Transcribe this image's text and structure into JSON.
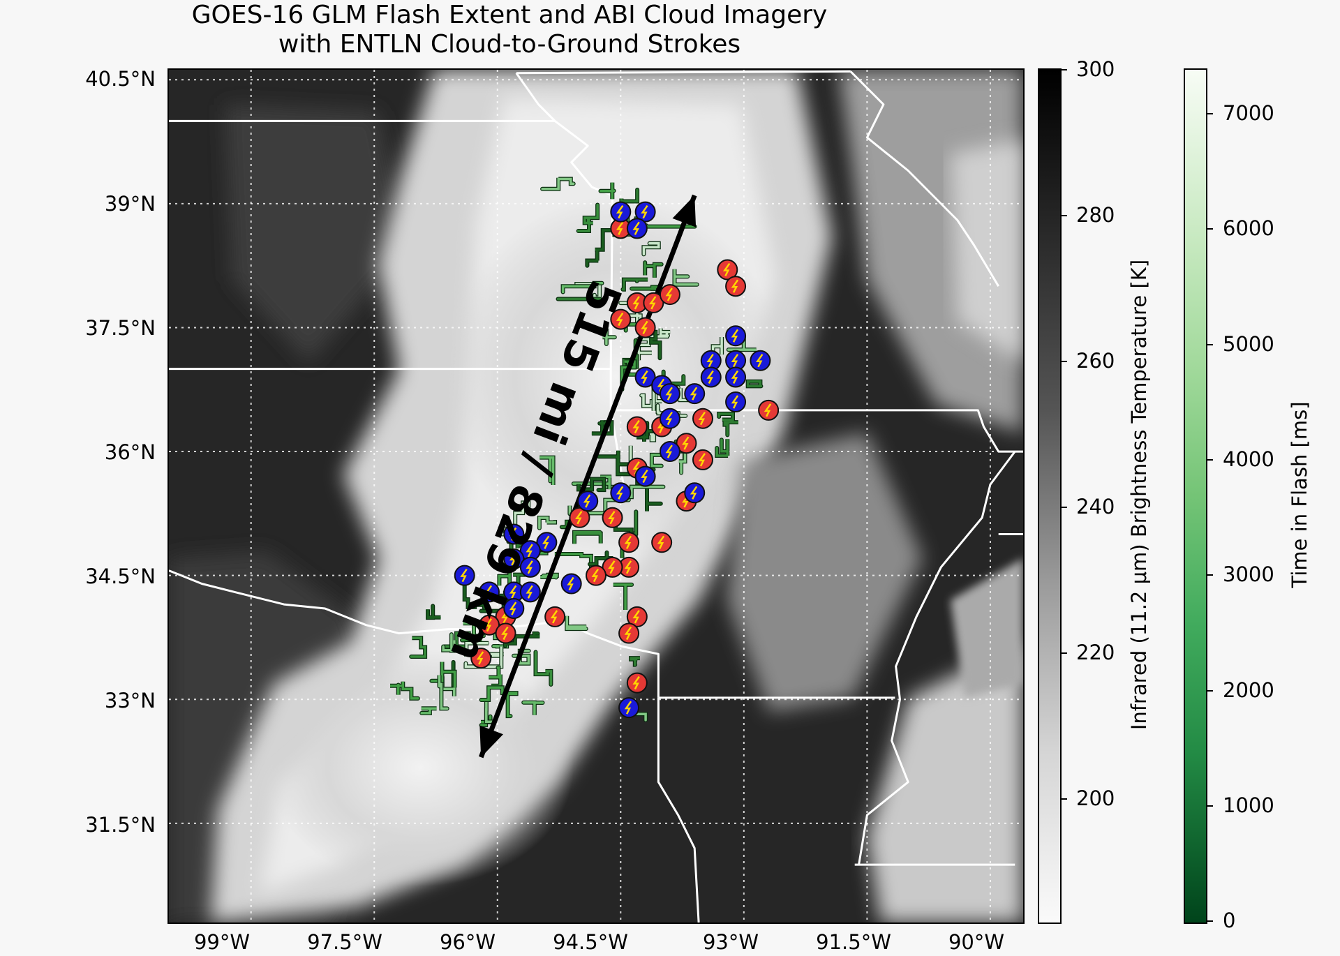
{
  "title": {
    "line1": "GOES-16 GLM Flash Extent and ABI Cloud Imagery",
    "line2": "with ENTLN Cloud-to-Ground Strokes"
  },
  "map": {
    "lat_labels": [
      "40.5°N",
      "39°N",
      "37.5°N",
      "36°N",
      "34.5°N",
      "33°N",
      "31.5°N"
    ],
    "lon_labels": [
      "99°W",
      "97.5°W",
      "96°W",
      "94.5°W",
      "93°W",
      "91.5°W",
      "90°W"
    ],
    "annotation": "515 mi / 829 km",
    "colors": {
      "state_borders": "#ffffff",
      "gridlines": "#ffffff",
      "flash_extent": "#2e7d32",
      "stroke_positive": "#e53935",
      "stroke_negative": "#1a1ad8",
      "stroke_symbol": "#ffd600",
      "arrow": "#000000"
    }
  },
  "colorbars": {
    "infrared": {
      "label": "Infrared (11.2 μm) Brightness Temperature [K]",
      "ticks": [
        "300",
        "280",
        "260",
        "240",
        "220",
        "200"
      ],
      "range": [
        180,
        300
      ]
    },
    "time": {
      "label": "Time in Flash [ms]",
      "ticks": [
        "7000",
        "6000",
        "5000",
        "4000",
        "3000",
        "2000",
        "1000",
        "0"
      ],
      "range": [
        0,
        7400
      ]
    }
  },
  "strokes_red": [
    [
      -93.2,
      38.2
    ],
    [
      -93.1,
      38.0
    ],
    [
      -94.3,
      37.8
    ],
    [
      -94.1,
      37.8
    ],
    [
      -93.9,
      37.9
    ],
    [
      -94.5,
      37.6
    ],
    [
      -94.2,
      37.5
    ],
    [
      -92.7,
      36.5
    ],
    [
      -93.5,
      36.4
    ],
    [
      -94.3,
      36.3
    ],
    [
      -94.0,
      36.3
    ],
    [
      -93.7,
      36.1
    ],
    [
      -93.5,
      35.9
    ],
    [
      -94.3,
      35.8
    ],
    [
      -93.7,
      35.4
    ],
    [
      -95.0,
      35.2
    ],
    [
      -94.6,
      35.2
    ],
    [
      -94.4,
      34.9
    ],
    [
      -94.0,
      34.9
    ],
    [
      -94.4,
      34.6
    ],
    [
      -94.6,
      34.6
    ],
    [
      -94.8,
      34.5
    ],
    [
      -95.9,
      34.0
    ],
    [
      -96.1,
      33.9
    ],
    [
      -95.3,
      34.0
    ],
    [
      -94.3,
      34.0
    ],
    [
      -94.4,
      33.8
    ],
    [
      -95.9,
      33.8
    ],
    [
      -96.2,
      33.5
    ],
    [
      -94.3,
      33.2
    ],
    [
      -94.5,
      38.7
    ]
  ],
  "strokes_blue": [
    [
      -94.5,
      38.9
    ],
    [
      -94.2,
      38.9
    ],
    [
      -94.3,
      38.7
    ],
    [
      -93.1,
      37.4
    ],
    [
      -92.8,
      37.1
    ],
    [
      -93.4,
      37.1
    ],
    [
      -93.1,
      37.1
    ],
    [
      -93.4,
      36.9
    ],
    [
      -93.1,
      36.9
    ],
    [
      -93.1,
      36.6
    ],
    [
      -94.2,
      36.9
    ],
    [
      -94.0,
      36.8
    ],
    [
      -93.9,
      36.7
    ],
    [
      -93.6,
      36.7
    ],
    [
      -93.9,
      36.4
    ],
    [
      -93.9,
      36.0
    ],
    [
      -94.2,
      35.7
    ],
    [
      -94.5,
      35.5
    ],
    [
      -94.9,
      35.4
    ],
    [
      -93.6,
      35.5
    ],
    [
      -95.8,
      35.0
    ],
    [
      -95.4,
      34.9
    ],
    [
      -95.6,
      34.8
    ],
    [
      -95.8,
      34.7
    ],
    [
      -95.6,
      34.6
    ],
    [
      -95.1,
      34.4
    ],
    [
      -96.4,
      34.5
    ],
    [
      -96.1,
      34.3
    ],
    [
      -95.8,
      34.3
    ],
    [
      -95.8,
      34.1
    ],
    [
      -95.6,
      34.3
    ],
    [
      -94.4,
      32.9
    ]
  ]
}
